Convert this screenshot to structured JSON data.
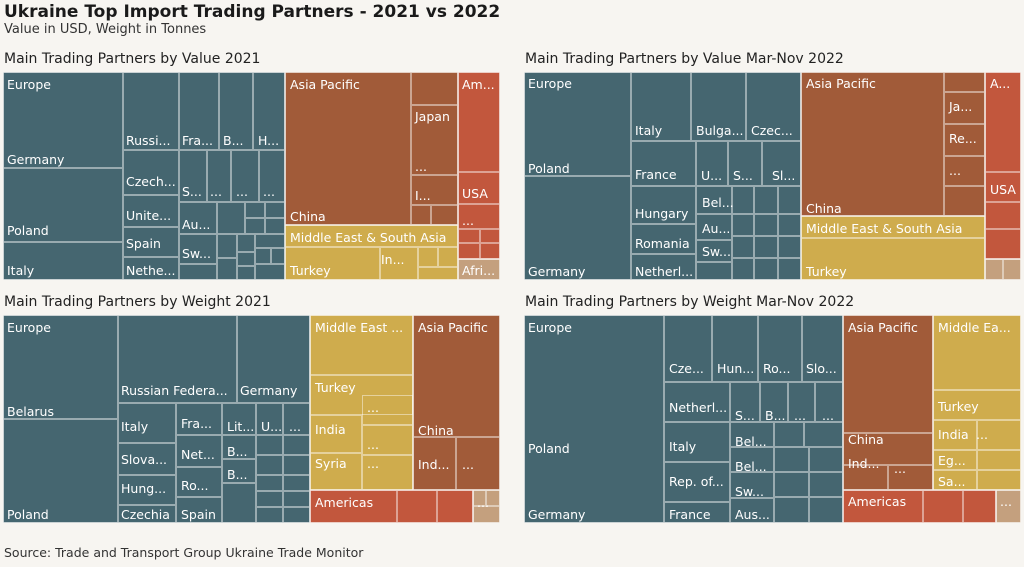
{
  "title": "Ukraine Top Import Trading Partners - 2021 vs 2022",
  "subtitle": "Value in USD, Weight in Tonnes",
  "source": "Source: Trade and Transport Group Ukraine Trade Monitor",
  "colors": {
    "Europe": "#456670",
    "Asia Pacific": "#a15b39",
    "Middle East & South Asia": "#cfac4d",
    "Americas": "#c2573d",
    "Africa": "#c4a07e"
  },
  "chart_data": [
    {
      "type": "treemap",
      "title": "Main Trading Partners by Value 2021",
      "cells": [
        {
          "region": "Europe",
          "label": "Europe"
        },
        {
          "region": "Europe",
          "label": "Germany"
        },
        {
          "region": "Europe",
          "label": "Poland"
        },
        {
          "region": "Europe",
          "label": "Italy"
        },
        {
          "region": "Europe",
          "label": "Russi..."
        },
        {
          "region": "Europe",
          "label": "Fra..."
        },
        {
          "region": "Europe",
          "label": "B..."
        },
        {
          "region": "Europe",
          "label": "H..."
        },
        {
          "region": "Europe",
          "label": "Czech..."
        },
        {
          "region": "Europe",
          "label": "S..."
        },
        {
          "region": "Europe",
          "label": "..."
        },
        {
          "region": "Europe",
          "label": "..."
        },
        {
          "region": "Europe",
          "label": "..."
        },
        {
          "region": "Europe",
          "label": "Unite..."
        },
        {
          "region": "Europe",
          "label": "Au..."
        },
        {
          "region": "Europe",
          "label": "Spain"
        },
        {
          "region": "Europe",
          "label": "Sw..."
        },
        {
          "region": "Europe",
          "label": "Nethe..."
        },
        {
          "region": "Asia Pacific",
          "label": "Asia Pacific"
        },
        {
          "region": "Asia Pacific",
          "label": "China"
        },
        {
          "region": "Asia Pacific",
          "label": "Japan"
        },
        {
          "region": "Asia Pacific",
          "label": "..."
        },
        {
          "region": "Asia Pacific",
          "label": "I..."
        },
        {
          "region": "Americas",
          "label": "Am..."
        },
        {
          "region": "Americas",
          "label": "USA"
        },
        {
          "region": "Americas",
          "label": "..."
        },
        {
          "region": "Middle East & South Asia",
          "label": "Middle East & South Asia"
        },
        {
          "region": "Middle East & South Asia",
          "label": "Turkey"
        },
        {
          "region": "Middle East & South Asia",
          "label": "In..."
        },
        {
          "region": "Africa",
          "label": "Afri..."
        }
      ]
    },
    {
      "type": "treemap",
      "title": "Main Trading Partners by Value Mar-Nov 2022",
      "cells": [
        {
          "region": "Europe",
          "label": "Europe"
        },
        {
          "region": "Europe",
          "label": "Poland"
        },
        {
          "region": "Europe",
          "label": "Germany"
        },
        {
          "region": "Europe",
          "label": "Italy"
        },
        {
          "region": "Europe",
          "label": "Bulga..."
        },
        {
          "region": "Europe",
          "label": "Czec..."
        },
        {
          "region": "Europe",
          "label": "France"
        },
        {
          "region": "Europe",
          "label": "U..."
        },
        {
          "region": "Europe",
          "label": "S..."
        },
        {
          "region": "Europe",
          "label": "Sl..."
        },
        {
          "region": "Europe",
          "label": "Hungary"
        },
        {
          "region": "Europe",
          "label": "Bel..."
        },
        {
          "region": "Europe",
          "label": "Au..."
        },
        {
          "region": "Europe",
          "label": "Romania"
        },
        {
          "region": "Europe",
          "label": "Sw..."
        },
        {
          "region": "Europe",
          "label": "Netherl..."
        },
        {
          "region": "Asia Pacific",
          "label": "Asia Pacific"
        },
        {
          "region": "Asia Pacific",
          "label": "China"
        },
        {
          "region": "Asia Pacific",
          "label": "Ja..."
        },
        {
          "region": "Asia Pacific",
          "label": "Re..."
        },
        {
          "region": "Asia Pacific",
          "label": "..."
        },
        {
          "region": "Americas",
          "label": "A..."
        },
        {
          "region": "Americas",
          "label": "USA"
        },
        {
          "region": "Middle East & South Asia",
          "label": "Middle East & South Asia"
        },
        {
          "region": "Middle East & South Asia",
          "label": "Turkey"
        }
      ]
    },
    {
      "type": "treemap",
      "title": "Main Trading Partners by Weight 2021",
      "cells": [
        {
          "region": "Europe",
          "label": "Europe"
        },
        {
          "region": "Europe",
          "label": "Belarus"
        },
        {
          "region": "Europe",
          "label": "Poland"
        },
        {
          "region": "Europe",
          "label": "Russian Federa..."
        },
        {
          "region": "Europe",
          "label": "Germany"
        },
        {
          "region": "Europe",
          "label": "Italy"
        },
        {
          "region": "Europe",
          "label": "Fra..."
        },
        {
          "region": "Europe",
          "label": "Lit..."
        },
        {
          "region": "Europe",
          "label": "U..."
        },
        {
          "region": "Europe",
          "label": "..."
        },
        {
          "region": "Europe",
          "label": "Slova..."
        },
        {
          "region": "Europe",
          "label": "Net..."
        },
        {
          "region": "Europe",
          "label": "B..."
        },
        {
          "region": "Europe",
          "label": "B..."
        },
        {
          "region": "Europe",
          "label": "Hung..."
        },
        {
          "region": "Europe",
          "label": "Ro..."
        },
        {
          "region": "Europe",
          "label": "Czechia"
        },
        {
          "region": "Europe",
          "label": "Spain"
        },
        {
          "region": "Middle East & South Asia",
          "label": "Middle East ..."
        },
        {
          "region": "Middle East & South Asia",
          "label": "Turkey"
        },
        {
          "region": "Middle East & South Asia",
          "label": "India"
        },
        {
          "region": "Middle East & South Asia",
          "label": "..."
        },
        {
          "region": "Middle East & South Asia",
          "label": "..."
        },
        {
          "region": "Middle East & South Asia",
          "label": "Syria"
        },
        {
          "region": "Middle East & South Asia",
          "label": "..."
        },
        {
          "region": "Asia Pacific",
          "label": "Asia Pacific"
        },
        {
          "region": "Asia Pacific",
          "label": "China"
        },
        {
          "region": "Asia Pacific",
          "label": "Ind..."
        },
        {
          "region": "Asia Pacific",
          "label": "..."
        },
        {
          "region": "Americas",
          "label": "Americas"
        },
        {
          "region": "Africa",
          "label": "..."
        }
      ]
    },
    {
      "type": "treemap",
      "title": "Main Trading Partners by Weight Mar-Nov 2022",
      "cells": [
        {
          "region": "Europe",
          "label": "Europe"
        },
        {
          "region": "Europe",
          "label": "Poland"
        },
        {
          "region": "Europe",
          "label": "Germany"
        },
        {
          "region": "Europe",
          "label": "Cze..."
        },
        {
          "region": "Europe",
          "label": "Hun..."
        },
        {
          "region": "Europe",
          "label": "Ro..."
        },
        {
          "region": "Europe",
          "label": "Slo..."
        },
        {
          "region": "Europe",
          "label": "Netherl..."
        },
        {
          "region": "Europe",
          "label": "S..."
        },
        {
          "region": "Europe",
          "label": "B..."
        },
        {
          "region": "Europe",
          "label": "..."
        },
        {
          "region": "Europe",
          "label": "..."
        },
        {
          "region": "Europe",
          "label": "Italy"
        },
        {
          "region": "Europe",
          "label": "Bel..."
        },
        {
          "region": "Europe",
          "label": "Bel..."
        },
        {
          "region": "Europe",
          "label": "Rep. of..."
        },
        {
          "region": "Europe",
          "label": "Sw..."
        },
        {
          "region": "Europe",
          "label": "France"
        },
        {
          "region": "Europe",
          "label": "Aus..."
        },
        {
          "region": "Asia Pacific",
          "label": "Asia Pacific"
        },
        {
          "region": "Asia Pacific",
          "label": "China"
        },
        {
          "region": "Asia Pacific",
          "label": "Ind..."
        },
        {
          "region": "Asia Pacific",
          "label": "..."
        },
        {
          "region": "Americas",
          "label": "Americas"
        },
        {
          "region": "Middle East & South Asia",
          "label": "Middle Ea..."
        },
        {
          "region": "Middle East & South Asia",
          "label": "Turkey"
        },
        {
          "region": "Middle East & South Asia",
          "label": "India"
        },
        {
          "region": "Middle East & South Asia",
          "label": "..."
        },
        {
          "region": "Middle East & South Asia",
          "label": "Eg..."
        },
        {
          "region": "Middle East & South Asia",
          "label": "Sa..."
        },
        {
          "region": "Africa",
          "label": "..."
        }
      ]
    }
  ]
}
